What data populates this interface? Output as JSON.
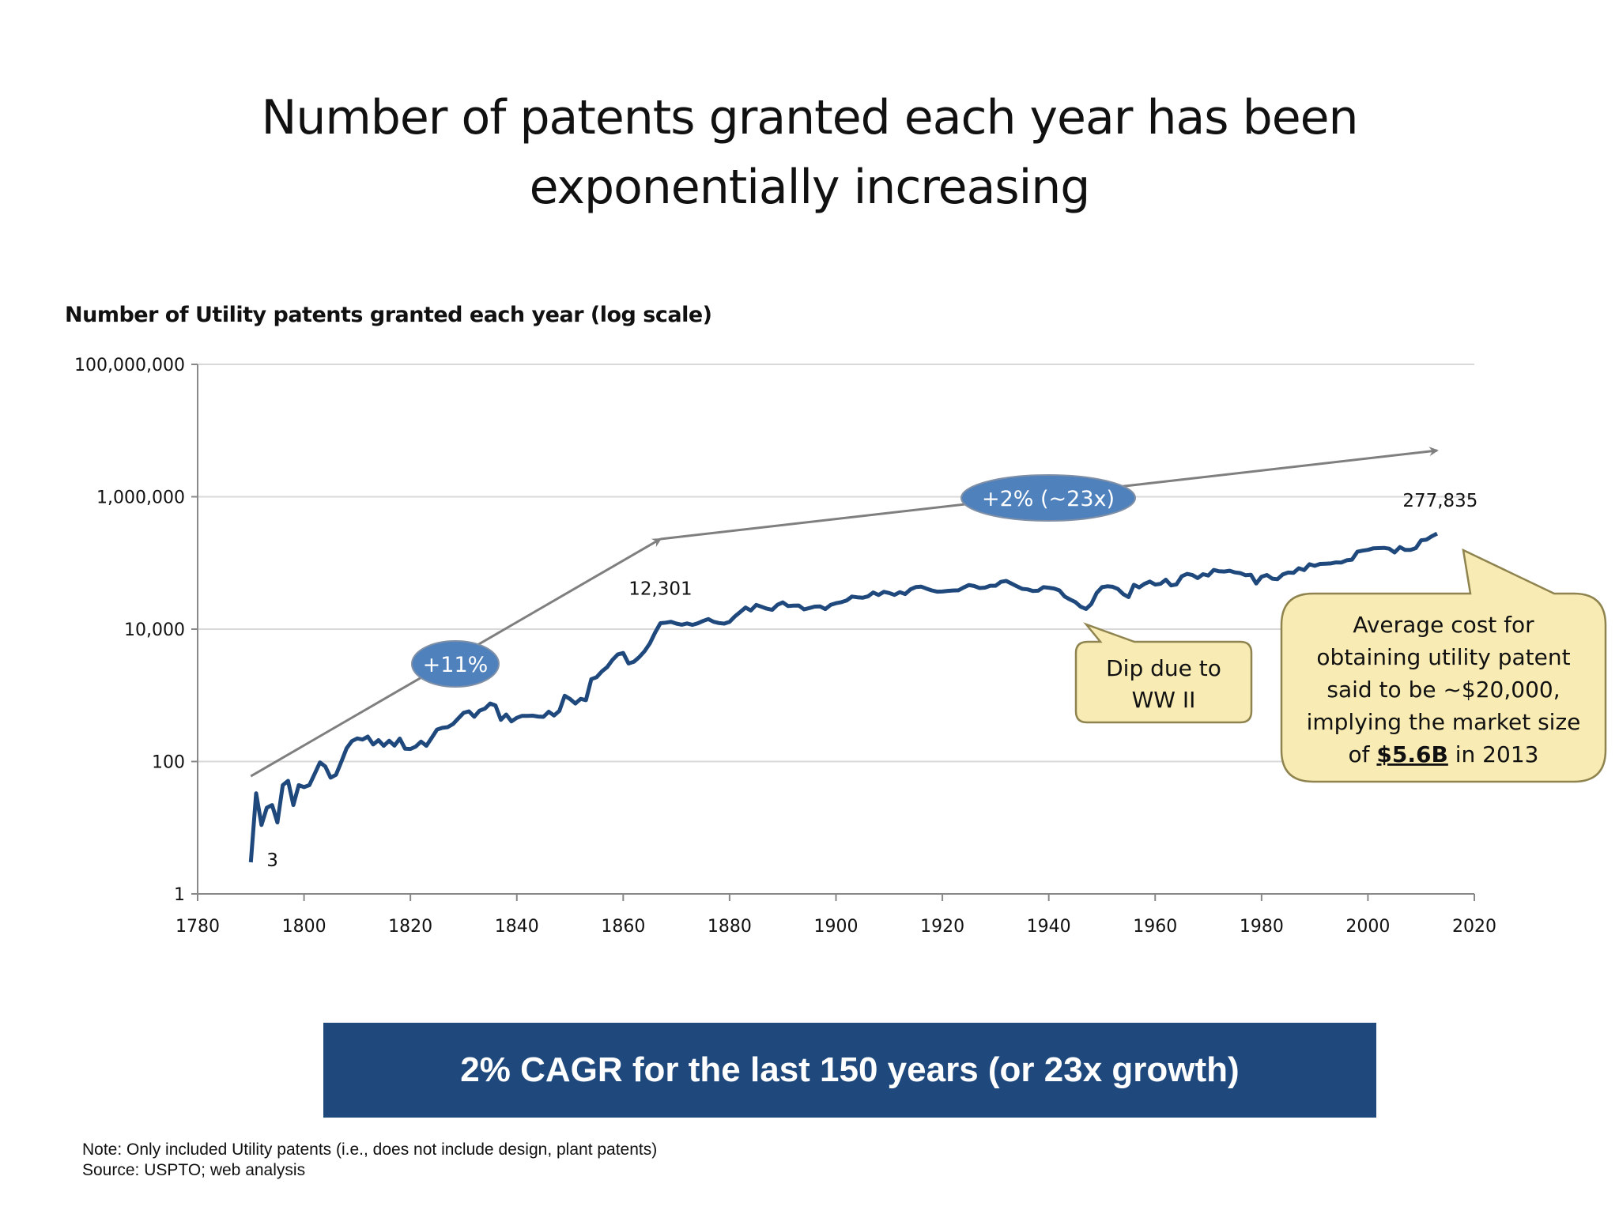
{
  "title_lines": [
    "Number of patents granted each year has been",
    "exponentially increasing"
  ],
  "banner": "2% CAGR for the last 150 years (or 23x growth)",
  "notes": [
    "Note: Only included Utility patents (i.e., does not include design, plant patents)",
    "Source: USPTO; web analysis"
  ],
  "colors": {
    "series": "#1f497d",
    "banner": "#1f497d",
    "pill": "#4f81bd",
    "arrow": "#7f7f7f",
    "callout_fill": "#f8ecb4",
    "callout_border": "#8f8450",
    "grid": "#d9d9d9"
  },
  "chart_data": {
    "type": "line",
    "title": "Number of Utility patents granted each year (log scale)",
    "xlim": [
      1780,
      2020
    ],
    "ylim": [
      1,
      100000000
    ],
    "y_scale": "log",
    "grid": "horizontal",
    "x_ticks": [
      "1780",
      "1800",
      "1820",
      "1840",
      "1860",
      "1880",
      "1900",
      "1920",
      "1940",
      "1960",
      "1980",
      "2000",
      "2020"
    ],
    "y_ticks": [
      {
        "value": 1,
        "label": "1"
      },
      {
        "value": 100,
        "label": "100"
      },
      {
        "value": 10000,
        "label": "10,000"
      },
      {
        "value": 1000000,
        "label": "1,000,000"
      },
      {
        "value": 100000000,
        "label": "100,000,000"
      }
    ],
    "data_labels": [
      {
        "x": 1790,
        "y": 3,
        "text": "3"
      },
      {
        "x": 1867,
        "y": 12301,
        "text": "12,301"
      },
      {
        "x": 2013,
        "y": 277835,
        "text": "277,835"
      }
    ],
    "trend_arrows": [
      {
        "from": [
          1790,
          60
        ],
        "to": [
          1867,
          230000
        ],
        "label": "+11%"
      },
      {
        "from": [
          1867,
          230000
        ],
        "to": [
          2013,
          5000000
        ],
        "label": "+2% (~23x)"
      }
    ],
    "annotations": [
      {
        "id": "ww2",
        "lines": [
          "Dip due to",
          "WW II"
        ]
      },
      {
        "id": "market",
        "lines": [
          "Average cost for",
          "obtaining utility patent",
          "said to be ~$20,000,",
          "implying the market size"
        ],
        "last_line": {
          "before": "of ",
          "emphasis": "$5.6B",
          "after": " in 2013"
        }
      }
    ],
    "points": [
      [
        1790,
        3
      ],
      [
        1791,
        33
      ],
      [
        1792,
        11
      ],
      [
        1793,
        20
      ],
      [
        1794,
        22
      ],
      [
        1795,
        12
      ],
      [
        1796,
        44
      ],
      [
        1797,
        51
      ],
      [
        1798,
        22
      ],
      [
        1799,
        44
      ],
      [
        1800,
        41
      ],
      [
        1801,
        44
      ],
      [
        1802,
        65
      ],
      [
        1803,
        97
      ],
      [
        1804,
        84
      ],
      [
        1805,
        57
      ],
      [
        1806,
        63
      ],
      [
        1807,
        99
      ],
      [
        1808,
        158
      ],
      [
        1809,
        203
      ],
      [
        1810,
        223
      ],
      [
        1811,
        215
      ],
      [
        1812,
        238
      ],
      [
        1813,
        181
      ],
      [
        1814,
        210
      ],
      [
        1815,
        173
      ],
      [
        1816,
        206
      ],
      [
        1817,
        174
      ],
      [
        1818,
        222
      ],
      [
        1819,
        156
      ],
      [
        1820,
        155
      ],
      [
        1821,
        168
      ],
      [
        1822,
        200
      ],
      [
        1823,
        173
      ],
      [
        1824,
        228
      ],
      [
        1825,
        304
      ],
      [
        1826,
        323
      ],
      [
        1827,
        331
      ],
      [
        1828,
        368
      ],
      [
        1829,
        447
      ],
      [
        1830,
        544
      ],
      [
        1831,
        573
      ],
      [
        1832,
        474
      ],
      [
        1833,
        586
      ],
      [
        1834,
        630
      ],
      [
        1835,
        752
      ],
      [
        1836,
        702
      ],
      [
        1837,
        426
      ],
      [
        1838,
        514
      ],
      [
        1839,
        404
      ],
      [
        1840,
        458
      ],
      [
        1841,
        490
      ],
      [
        1842,
        488
      ],
      [
        1843,
        493
      ],
      [
        1844,
        478
      ],
      [
        1845,
        473
      ],
      [
        1846,
        566
      ],
      [
        1847,
        495
      ],
      [
        1848,
        583
      ],
      [
        1849,
        984
      ],
      [
        1850,
        883
      ],
      [
        1851,
        752
      ],
      [
        1852,
        885
      ],
      [
        1853,
        844
      ],
      [
        1854,
        1755
      ],
      [
        1855,
        1881
      ],
      [
        1856,
        2302
      ],
      [
        1857,
        2674
      ],
      [
        1858,
        3455
      ],
      [
        1859,
        4160
      ],
      [
        1860,
        4357
      ],
      [
        1861,
        3020
      ],
      [
        1862,
        3214
      ],
      [
        1863,
        3773
      ],
      [
        1864,
        4630
      ],
      [
        1865,
        6088
      ],
      [
        1866,
        8863
      ],
      [
        1867,
        12301
      ],
      [
        1868,
        12526
      ],
      [
        1869,
        12931
      ],
      [
        1870,
        12137
      ],
      [
        1871,
        11659
      ],
      [
        1872,
        12180
      ],
      [
        1873,
        11616
      ],
      [
        1874,
        12230
      ],
      [
        1875,
        13291
      ],
      [
        1876,
        14169
      ],
      [
        1877,
        12920
      ],
      [
        1878,
        12345
      ],
      [
        1879,
        12133
      ],
      [
        1880,
        12903
      ],
      [
        1881,
        15548
      ],
      [
        1882,
        18135
      ],
      [
        1883,
        21162
      ],
      [
        1884,
        19118
      ],
      [
        1885,
        23285
      ],
      [
        1886,
        21767
      ],
      [
        1887,
        20403
      ],
      [
        1888,
        19551
      ],
      [
        1889,
        23324
      ],
      [
        1890,
        25313
      ],
      [
        1891,
        22328
      ],
      [
        1892,
        22661
      ],
      [
        1893,
        22768
      ],
      [
        1894,
        19875
      ],
      [
        1895,
        20856
      ],
      [
        1896,
        21867
      ],
      [
        1897,
        22098
      ],
      [
        1898,
        20120
      ],
      [
        1899,
        23278
      ],
      [
        1900,
        24644
      ],
      [
        1901,
        25546
      ],
      [
        1902,
        27119
      ],
      [
        1903,
        31029
      ],
      [
        1904,
        30258
      ],
      [
        1905,
        29775
      ],
      [
        1906,
        31170
      ],
      [
        1907,
        35859
      ],
      [
        1908,
        32757
      ],
      [
        1909,
        36561
      ],
      [
        1910,
        35141
      ],
      [
        1911,
        32856
      ],
      [
        1912,
        36198
      ],
      [
        1913,
        33917
      ],
      [
        1914,
        39892
      ],
      [
        1915,
        43118
      ],
      [
        1916,
        43892
      ],
      [
        1917,
        40935
      ],
      [
        1918,
        38452
      ],
      [
        1919,
        36797
      ],
      [
        1920,
        37060
      ],
      [
        1921,
        37798
      ],
      [
        1922,
        38369
      ],
      [
        1923,
        38616
      ],
      [
        1924,
        42574
      ],
      [
        1925,
        46432
      ],
      [
        1926,
        44733
      ],
      [
        1927,
        41717
      ],
      [
        1928,
        42357
      ],
      [
        1929,
        45267
      ],
      [
        1930,
        45226
      ],
      [
        1931,
        51756
      ],
      [
        1932,
        53504
      ],
      [
        1933,
        48774
      ],
      [
        1934,
        44420
      ],
      [
        1935,
        40618
      ],
      [
        1936,
        39831
      ],
      [
        1937,
        37683
      ],
      [
        1938,
        38061
      ],
      [
        1939,
        43073
      ],
      [
        1940,
        42238
      ],
      [
        1941,
        41109
      ],
      [
        1942,
        38514
      ],
      [
        1943,
        31054
      ],
      [
        1944,
        28053
      ],
      [
        1945,
        25695
      ],
      [
        1946,
        21803
      ],
      [
        1947,
        20139
      ],
      [
        1948,
        23963
      ],
      [
        1949,
        35131
      ],
      [
        1950,
        43040
      ],
      [
        1951,
        44326
      ],
      [
        1952,
        43616
      ],
      [
        1953,
        40468
      ],
      [
        1954,
        33809
      ],
      [
        1955,
        30432
      ],
      [
        1956,
        46817
      ],
      [
        1957,
        42744
      ],
      [
        1958,
        48330
      ],
      [
        1959,
        52408
      ],
      [
        1960,
        47170
      ],
      [
        1961,
        48368
      ],
      [
        1962,
        55691
      ],
      [
        1963,
        45679
      ],
      [
        1964,
        47375
      ],
      [
        1965,
        62857
      ],
      [
        1966,
        68406
      ],
      [
        1967,
        65652
      ],
      [
        1968,
        59104
      ],
      [
        1969,
        67559
      ],
      [
        1970,
        64429
      ],
      [
        1971,
        78317
      ],
      [
        1972,
        74810
      ],
      [
        1973,
        74143
      ],
      [
        1974,
        76278
      ],
      [
        1975,
        72000
      ],
      [
        1976,
        70226
      ],
      [
        1977,
        65269
      ],
      [
        1978,
        66102
      ],
      [
        1979,
        48854
      ],
      [
        1980,
        61819
      ],
      [
        1981,
        65771
      ],
      [
        1982,
        57888
      ],
      [
        1983,
        56860
      ],
      [
        1984,
        67200
      ],
      [
        1985,
        71661
      ],
      [
        1986,
        70860
      ],
      [
        1987,
        82952
      ],
      [
        1988,
        77924
      ],
      [
        1989,
        95537
      ],
      [
        1990,
        90365
      ],
      [
        1991,
        96511
      ],
      [
        1992,
        97444
      ],
      [
        1993,
        98342
      ],
      [
        1994,
        101676
      ],
      [
        1995,
        101419
      ],
      [
        1996,
        109645
      ],
      [
        1997,
        111984
      ],
      [
        1998,
        147517
      ],
      [
        1999,
        153485
      ],
      [
        2000,
        157494
      ],
      [
        2001,
        166035
      ],
      [
        2002,
        167331
      ],
      [
        2003,
        169023
      ],
      [
        2004,
        164290
      ],
      [
        2005,
        143806
      ],
      [
        2006,
        173772
      ],
      [
        2007,
        157282
      ],
      [
        2008,
        157772
      ],
      [
        2009,
        167349
      ],
      [
        2010,
        219614
      ],
      [
        2011,
        224505
      ],
      [
        2012,
        253155
      ],
      [
        2013,
        277835
      ]
    ]
  }
}
